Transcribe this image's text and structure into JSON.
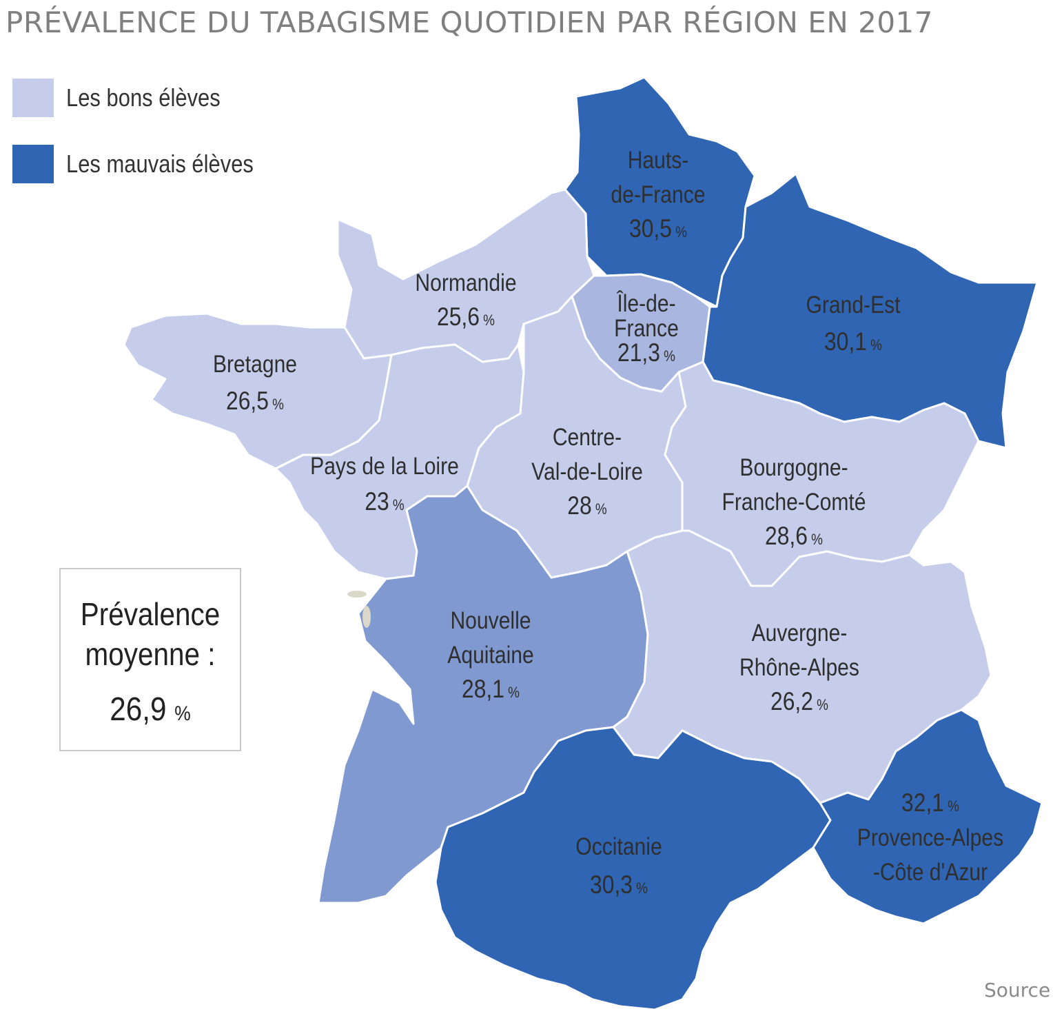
{
  "title": "PRÉVALENCE DU TABAGISME QUOTIDIEN PAR RÉGION EN 2017",
  "legend": [
    {
      "label": "Les bons élèves",
      "color": "#c5cdeb"
    },
    {
      "label": "Les mauvais élèves",
      "color": "#2f65b3"
    }
  ],
  "colors": {
    "light": "#c5cdeb",
    "medium_light": "#a9b6e0",
    "medium": "#8199d1",
    "dark": "#2f65b3",
    "coast_islands": "#d9d8c9"
  },
  "regions": [
    {
      "key": "hdf",
      "name_lines": [
        "Hauts-",
        "de-France"
      ],
      "value": "30,5",
      "color_class": "dark"
    },
    {
      "key": "nor",
      "name_lines": [
        "Normandie"
      ],
      "value": "25,6",
      "color_class": "light"
    },
    {
      "key": "idf",
      "name_lines": [
        "Île-de-",
        "France"
      ],
      "value": "21,3",
      "color_class": "medium_light"
    },
    {
      "key": "ge",
      "name_lines": [
        "Grand-Est"
      ],
      "value": "30,1",
      "color_class": "dark"
    },
    {
      "key": "bre",
      "name_lines": [
        "Bretagne"
      ],
      "value": "26,5",
      "color_class": "light"
    },
    {
      "key": "pdl",
      "name_lines": [
        "Pays de la Loire"
      ],
      "value": "23",
      "color_class": "light"
    },
    {
      "key": "cvl",
      "name_lines": [
        "Centre-",
        "Val-de-Loire"
      ],
      "value": "28",
      "color_class": "light"
    },
    {
      "key": "bfc",
      "name_lines": [
        "Bourgogne-",
        "Franche-Comté"
      ],
      "value": "28,6",
      "color_class": "light"
    },
    {
      "key": "na",
      "name_lines": [
        "Nouvelle",
        "Aquitaine"
      ],
      "value": "28,1",
      "color_class": "medium"
    },
    {
      "key": "ara",
      "name_lines": [
        "Auvergne-",
        "Rhône-Alpes"
      ],
      "value": "26,2",
      "color_class": "light"
    },
    {
      "key": "occ",
      "name_lines": [
        "Occitanie"
      ],
      "value": "30,3",
      "color_class": "dark"
    },
    {
      "key": "paca",
      "name_lines": [
        "Provence-Alpes",
        "-Côte d'Azur"
      ],
      "value": "32,1",
      "color_class": "dark"
    }
  ],
  "percent_sign": "%",
  "average": {
    "label": "Prévalence\nmoyenne :",
    "value": "26,9"
  },
  "source": "Source"
}
